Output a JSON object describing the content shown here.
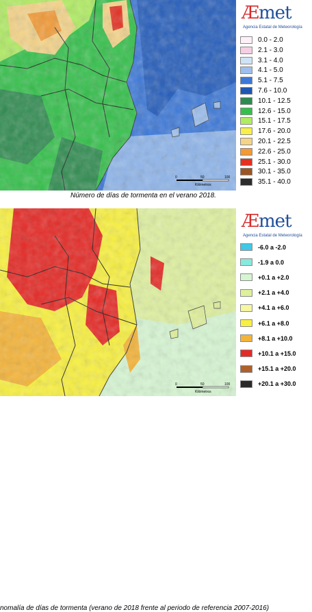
{
  "top_panel": {
    "logo": {
      "word": "AEmet",
      "subtitle": "Agencia Estatal de Meteorología"
    },
    "legend": [
      {
        "label": "0.0 - 2.0",
        "color": "#fff0f8"
      },
      {
        "label": "2.1 - 3.0",
        "color": "#f6cfe3"
      },
      {
        "label": "3.1 - 4.0",
        "color": "#cfe3f6"
      },
      {
        "label": "4.1 - 5.0",
        "color": "#9cbfee"
      },
      {
        "label": "5.1 - 7.5",
        "color": "#3c78d8"
      },
      {
        "label": "7.6 - 10.0",
        "color": "#1f56b4"
      },
      {
        "label": "10.1 - 12.5",
        "color": "#2e8b4f"
      },
      {
        "label": "12.6 - 15.0",
        "color": "#33c04a"
      },
      {
        "label": "15.1 - 17.5",
        "color": "#b0ec62"
      },
      {
        "label": "17.6 - 20.0",
        "color": "#f8f048"
      },
      {
        "label": "20.1 - 22.5",
        "color": "#f5d488"
      },
      {
        "label": "22.6 - 25.0",
        "color": "#f39a35"
      },
      {
        "label": "25.1 - 30.0",
        "color": "#e52f20"
      },
      {
        "label": "30.1 - 35.0",
        "color": "#9b5524"
      },
      {
        "label": "35.1 - 40.0",
        "color": "#2c2c2c"
      }
    ],
    "scale": {
      "ticks": [
        "0",
        "50",
        "100"
      ],
      "unit": "Kilómetros"
    },
    "caption": "Número de días de tormenta en el verano 2018."
  },
  "bottom_panel": {
    "logo": {
      "word": "AEmet",
      "subtitle": "Agencia Estatal de Meteorología"
    },
    "legend": [
      {
        "label": "-6.0 a -2.0",
        "color": "#3fc8e8"
      },
      {
        "label": "-1.9 a 0.0",
        "color": "#86eadc"
      },
      {
        "label": "+0.1 a +2.0",
        "color": "#d6f5d2"
      },
      {
        "label": "+2.1 a +4.0",
        "color": "#dff09a"
      },
      {
        "label": "+4.1 a +6.0",
        "color": "#f7f7a0"
      },
      {
        "label": "+6.1 a +8.0",
        "color": "#f8f040"
      },
      {
        "label": "+8.1 a +10.0",
        "color": "#f4b43a"
      },
      {
        "label": "+10.1 a +15.0",
        "color": "#e52a26"
      },
      {
        "label": "+15.1 a +20.0",
        "color": "#b0602a"
      },
      {
        "label": "+20.1 a +30.0",
        "color": "#2a2a2a"
      }
    ],
    "scale": {
      "ticks": [
        "0",
        "50",
        "100"
      ],
      "unit": "Kilómetros"
    },
    "caption": "nomalía de días de tormenta (verano de 2018 frente al periodo de referencia 2007-2016)"
  }
}
